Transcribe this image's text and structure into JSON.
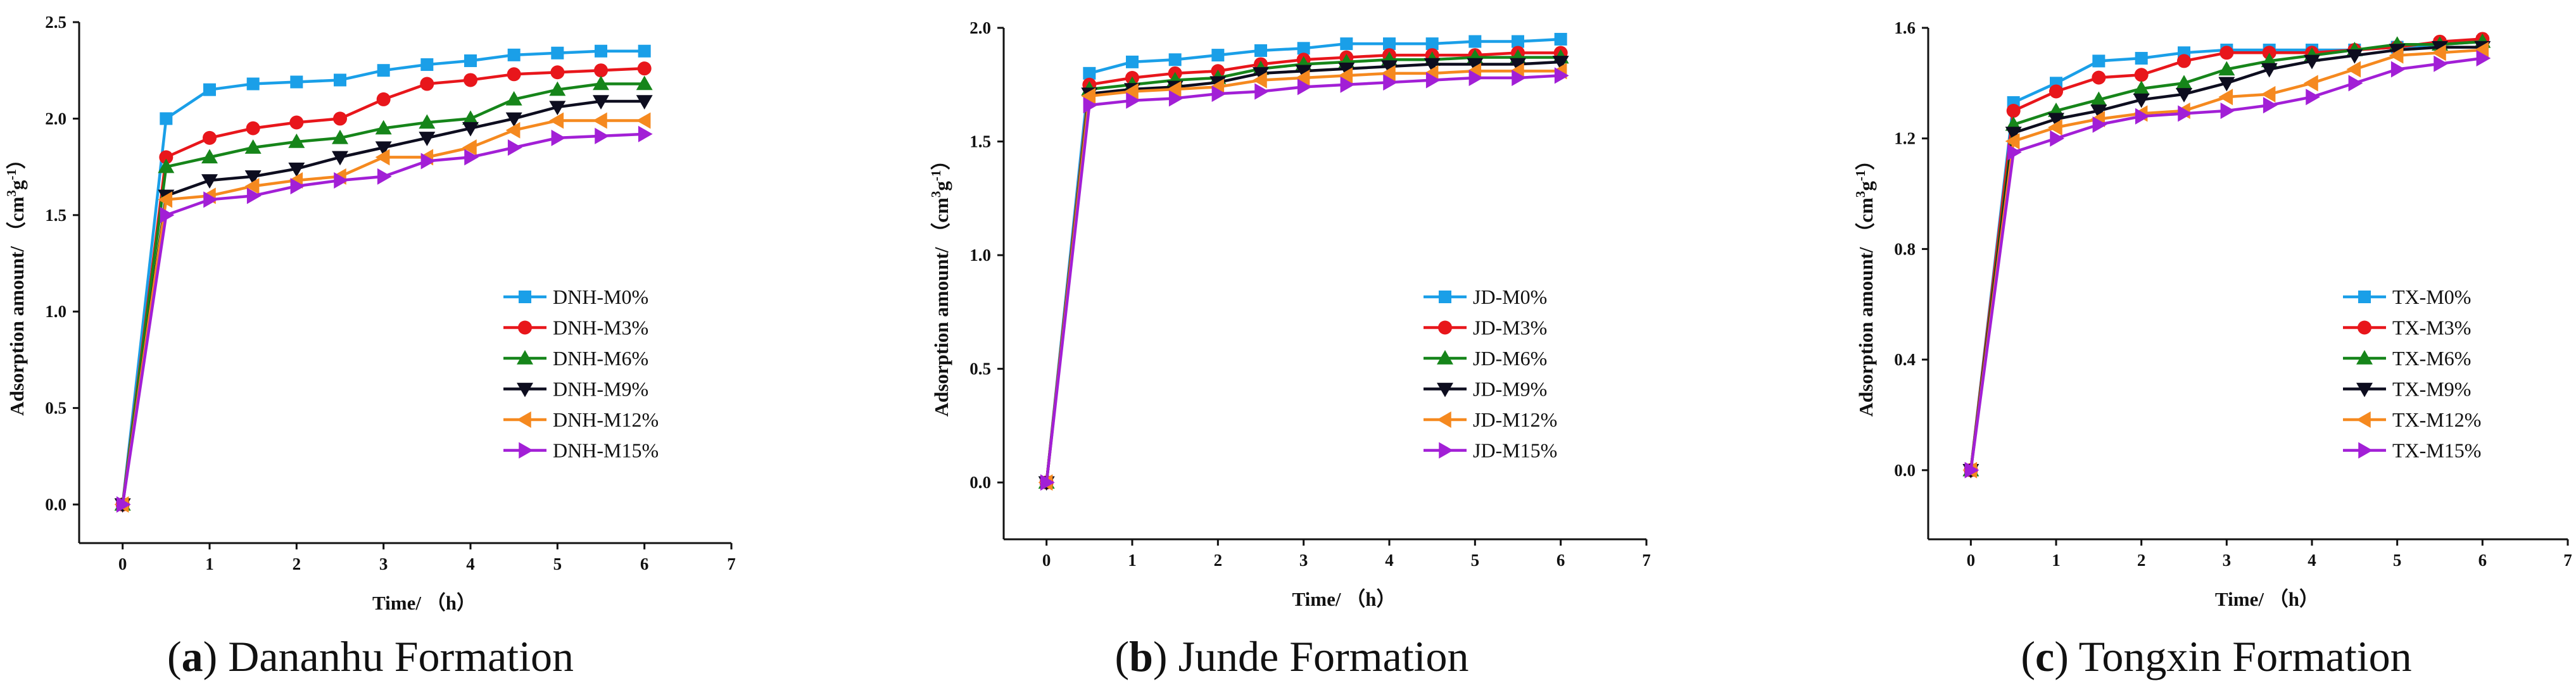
{
  "chart_data": [
    {
      "type": "line",
      "caption_letter": "a",
      "caption_title": " Dananhu Formation",
      "xlabel": "Time/ （h）",
      "ylabel_main": "Adsorption amount/ （cm",
      "ylabel_sup1": "3",
      "ylabel_mid": "g",
      "ylabel_sup2": "-1",
      "ylabel_end": "）",
      "xlim": [
        -0.5,
        7
      ],
      "ylim": [
        -0.2,
        2.5
      ],
      "xticks": [
        0,
        1,
        2,
        3,
        4,
        5,
        6,
        7
      ],
      "xtick_labels": [
        "0",
        "1",
        "2",
        "3",
        "4",
        "5",
        "6",
        "7"
      ],
      "yticks": [
        0,
        0.5,
        1.0,
        1.5,
        2.0,
        2.5
      ],
      "ytick_labels": [
        "0.0",
        "0.5",
        "1.0",
        "1.5",
        "2.0",
        "2.5"
      ],
      "x": [
        0,
        0.5,
        1,
        1.5,
        2,
        2.5,
        3,
        3.5,
        4,
        4.5,
        5,
        5.5,
        6
      ],
      "series": [
        {
          "name": "DNH-M0%",
          "color": "#1a9fe8",
          "marker": "square",
          "values": [
            0,
            2.0,
            2.15,
            2.18,
            2.19,
            2.2,
            2.25,
            2.28,
            2.3,
            2.33,
            2.34,
            2.35,
            2.35
          ]
        },
        {
          "name": "DNH-M3%",
          "color": "#e8161b",
          "marker": "circle",
          "values": [
            0,
            1.8,
            1.9,
            1.95,
            1.98,
            2.0,
            2.1,
            2.18,
            2.2,
            2.23,
            2.24,
            2.25,
            2.26
          ]
        },
        {
          "name": "DNH-M6%",
          "color": "#16851a",
          "marker": "triangle-up",
          "values": [
            0,
            1.75,
            1.8,
            1.85,
            1.88,
            1.9,
            1.95,
            1.98,
            2.0,
            2.1,
            2.15,
            2.18,
            2.18
          ]
        },
        {
          "name": "DNH-M9%",
          "color": "#0d0d1f",
          "marker": "triangle-down",
          "values": [
            0,
            1.6,
            1.68,
            1.7,
            1.74,
            1.8,
            1.85,
            1.9,
            1.95,
            2.0,
            2.06,
            2.09,
            2.09
          ]
        },
        {
          "name": "DNH-M12%",
          "color": "#f5891f",
          "marker": "triangle-left",
          "values": [
            0,
            1.58,
            1.6,
            1.65,
            1.68,
            1.7,
            1.8,
            1.8,
            1.85,
            1.94,
            1.99,
            1.99,
            1.99
          ]
        },
        {
          "name": "DNH-M15%",
          "color": "#a21fd6",
          "marker": "triangle-right",
          "values": [
            0,
            1.5,
            1.58,
            1.6,
            1.65,
            1.68,
            1.7,
            1.78,
            1.8,
            1.85,
            1.9,
            1.91,
            1.92
          ]
        }
      ]
    },
    {
      "type": "line",
      "caption_letter": "b",
      "caption_title": " Junde Formation",
      "xlabel": "Time/ （h）",
      "ylabel_main": "Adsorption amount/ （cm",
      "ylabel_sup1": "3",
      "ylabel_mid": "g",
      "ylabel_sup2": "-1",
      "ylabel_end": "）",
      "xlim": [
        -0.5,
        7
      ],
      "ylim": [
        -0.25,
        2.0
      ],
      "xticks": [
        0,
        1,
        2,
        3,
        4,
        5,
        6,
        7
      ],
      "xtick_labels": [
        "0",
        "1",
        "2",
        "3",
        "4",
        "5",
        "6",
        "7"
      ],
      "yticks": [
        0,
        0.5,
        1.0,
        1.5,
        2.0
      ],
      "ytick_labels": [
        "0.0",
        "0.5",
        "1.0",
        "1.5",
        "2.0"
      ],
      "x": [
        0,
        0.5,
        1,
        1.5,
        2,
        2.5,
        3,
        3.5,
        4,
        4.5,
        5,
        5.5,
        6
      ],
      "series": [
        {
          "name": "JD-M0%",
          "color": "#1a9fe8",
          "marker": "square",
          "values": [
            0,
            1.8,
            1.85,
            1.86,
            1.88,
            1.9,
            1.91,
            1.93,
            1.93,
            1.93,
            1.94,
            1.94,
            1.95
          ]
        },
        {
          "name": "JD-M3%",
          "color": "#e8161b",
          "marker": "circle",
          "values": [
            0,
            1.75,
            1.78,
            1.8,
            1.81,
            1.84,
            1.86,
            1.87,
            1.88,
            1.88,
            1.88,
            1.89,
            1.89
          ]
        },
        {
          "name": "JD-M6%",
          "color": "#16851a",
          "marker": "triangle-up",
          "values": [
            0,
            1.73,
            1.75,
            1.77,
            1.78,
            1.82,
            1.84,
            1.85,
            1.86,
            1.86,
            1.87,
            1.87,
            1.87
          ]
        },
        {
          "name": "JD-M9%",
          "color": "#0d0d1f",
          "marker": "triangle-down",
          "values": [
            0,
            1.71,
            1.73,
            1.74,
            1.76,
            1.8,
            1.81,
            1.82,
            1.83,
            1.84,
            1.84,
            1.84,
            1.85
          ]
        },
        {
          "name": "JD-M12%",
          "color": "#f5891f",
          "marker": "triangle-left",
          "values": [
            0,
            1.7,
            1.72,
            1.73,
            1.74,
            1.77,
            1.78,
            1.79,
            1.8,
            1.8,
            1.81,
            1.81,
            1.81
          ]
        },
        {
          "name": "JD-M15%",
          "color": "#a21fd6",
          "marker": "triangle-right",
          "values": [
            0,
            1.66,
            1.68,
            1.69,
            1.71,
            1.72,
            1.74,
            1.75,
            1.76,
            1.77,
            1.78,
            1.78,
            1.79
          ]
        }
      ]
    },
    {
      "type": "line",
      "caption_letter": "c",
      "caption_title": " Tongxin Formation",
      "xlabel": "Time/ （h）",
      "ylabel_main": "Adsorption amount/ （cm",
      "ylabel_sup1": "3",
      "ylabel_mid": "g",
      "ylabel_sup2": "-1",
      "ylabel_end": "）",
      "xlim": [
        -0.5,
        7
      ],
      "ylim": [
        -0.25,
        1.6
      ],
      "xticks": [
        0,
        1,
        2,
        3,
        4,
        5,
        6,
        7
      ],
      "xtick_labels": [
        "0",
        "1",
        "2",
        "3",
        "4",
        "5",
        "6",
        "7"
      ],
      "yticks": [
        0,
        0.4,
        0.8,
        1.2,
        1.6
      ],
      "ytick_labels": [
        "0.0",
        "0.4",
        "0.8",
        "1.2",
        "1.6"
      ],
      "x": [
        0,
        0.5,
        1,
        1.5,
        2,
        2.5,
        3,
        3.5,
        4,
        4.5,
        5,
        5.5,
        6
      ],
      "series": [
        {
          "name": "TX-M0%",
          "color": "#1a9fe8",
          "marker": "square",
          "values": [
            0,
            1.33,
            1.4,
            1.48,
            1.49,
            1.51,
            1.52,
            1.52,
            1.52,
            1.52,
            1.53,
            1.54,
            1.55
          ]
        },
        {
          "name": "TX-M3%",
          "color": "#e8161b",
          "marker": "circle",
          "values": [
            0,
            1.3,
            1.37,
            1.42,
            1.43,
            1.48,
            1.51,
            1.51,
            1.51,
            1.52,
            1.53,
            1.55,
            1.56
          ]
        },
        {
          "name": "TX-M6%",
          "color": "#16851a",
          "marker": "triangle-up",
          "values": [
            0,
            1.25,
            1.3,
            1.34,
            1.38,
            1.4,
            1.45,
            1.48,
            1.5,
            1.52,
            1.54,
            1.54,
            1.55
          ]
        },
        {
          "name": "TX-M9%",
          "color": "#0d0d1f",
          "marker": "triangle-down",
          "values": [
            0,
            1.22,
            1.27,
            1.3,
            1.34,
            1.36,
            1.4,
            1.45,
            1.48,
            1.5,
            1.52,
            1.53,
            1.53
          ]
        },
        {
          "name": "TX-M12%",
          "color": "#f5891f",
          "marker": "triangle-left",
          "values": [
            0,
            1.19,
            1.24,
            1.27,
            1.29,
            1.3,
            1.35,
            1.36,
            1.4,
            1.45,
            1.5,
            1.51,
            1.52
          ]
        },
        {
          "name": "TX-M15%",
          "color": "#a21fd6",
          "marker": "triangle-right",
          "values": [
            0,
            1.15,
            1.2,
            1.25,
            1.28,
            1.29,
            1.3,
            1.32,
            1.35,
            1.4,
            1.45,
            1.47,
            1.49
          ]
        }
      ]
    }
  ]
}
